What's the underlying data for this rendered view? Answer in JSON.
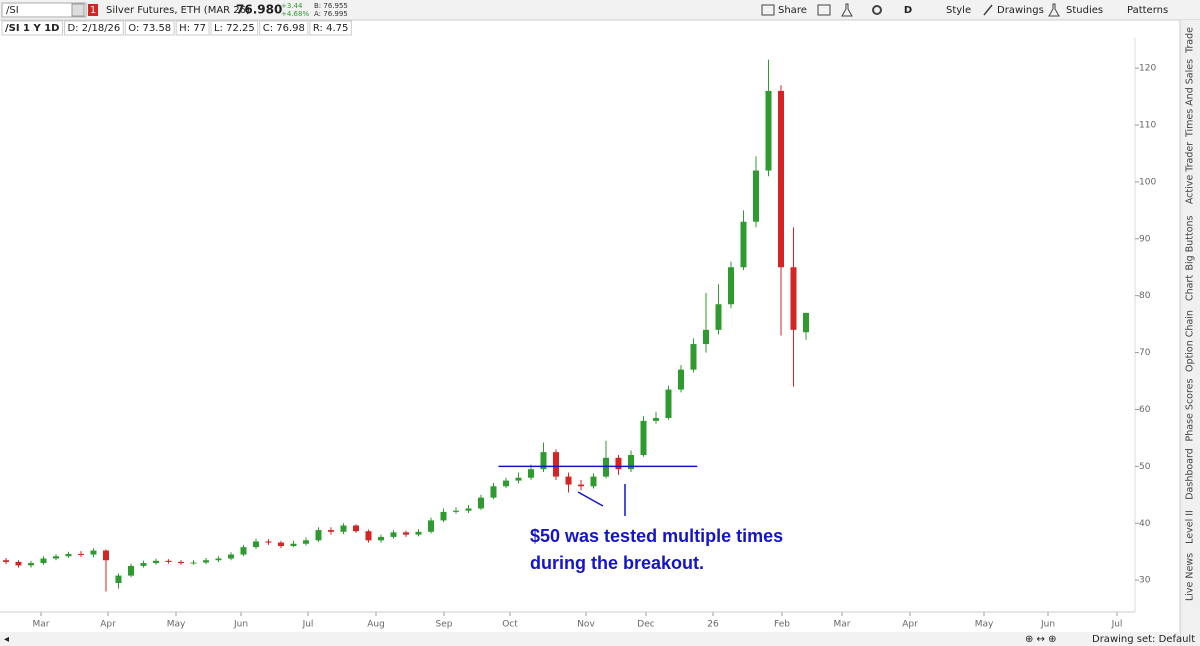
{
  "toolbar": {
    "symbol": "/SI",
    "badge": "1",
    "description": "Silver Futures, ETH (MAR 26)",
    "last": "76.980",
    "change": "+3.44",
    "change_pct": "+4.68%",
    "bid": "B: 76.955",
    "ask": "A: 76.995",
    "share": "Share",
    "aggregation": "D",
    "style": "Style",
    "drawings": "Drawings",
    "studies": "Studies",
    "patterns": "Patterns"
  },
  "info_bar": [
    "/SI 1 Y 1D",
    "D: 2/18/26",
    "O: 73.58",
    "H: 77",
    "L: 72.25",
    "C: 76.98",
    "R: 4.75"
  ],
  "side_tabs": [
    "Trade",
    "Times And Sales",
    "Active Trader",
    "Big Buttons",
    "Chart",
    "Option Chain",
    "Phase Scores",
    "Dashboard",
    "Level II",
    "Live News"
  ],
  "status": "Drawing set: Default",
  "chart_data": {
    "type": "candlestick",
    "categories": [
      null,
      null,
      null,
      null,
      null,
      null,
      null,
      null,
      null,
      null,
      null,
      null,
      null,
      null,
      null,
      null,
      null,
      null,
      null,
      null,
      null,
      null,
      null,
      null,
      null,
      null,
      null,
      null,
      null,
      null,
      null,
      null,
      null,
      null,
      null,
      null,
      null,
      null,
      null,
      null,
      null,
      null,
      null,
      null,
      null,
      null,
      null,
      null,
      null,
      null,
      null,
      null,
      null,
      null,
      null,
      null,
      null,
      null,
      null,
      null,
      null,
      null,
      null,
      null,
      null
    ],
    "open": [
      33.5,
      33.2,
      32.6,
      33.0,
      33.8,
      34.2,
      34.6,
      34.5,
      35.2,
      29.5,
      30.8,
      32.5,
      33.0,
      33.4,
      33.2,
      33.0,
      33.1,
      33.5,
      33.8,
      34.5,
      35.8,
      36.8,
      36.6,
      36.0,
      36.4,
      37.0,
      38.8,
      38.5,
      39.6,
      38.6,
      37.0,
      37.6,
      38.4,
      38.0,
      38.5,
      40.5,
      42.0,
      42.2,
      42.6,
      44.5,
      46.5,
      47.5,
      48.0,
      49.5,
      52.5,
      48.2,
      46.8,
      46.5,
      48.2,
      51.5,
      49.5,
      52.0,
      58.0,
      58.5,
      63.5,
      67.0,
      71.5,
      74.0,
      78.5,
      85.0,
      93.0,
      102.0,
      116.0,
      85.0,
      73.58
    ],
    "high": [
      33.9,
      33.5,
      33.4,
      34.2,
      34.6,
      35.0,
      35.1,
      35.6,
      35.4,
      31.2,
      32.9,
      33.4,
      33.8,
      33.7,
      33.5,
      33.5,
      33.9,
      34.2,
      34.9,
      36.2,
      37.3,
      37.2,
      36.9,
      36.9,
      37.5,
      39.3,
      39.3,
      40.0,
      39.8,
      38.9,
      38.0,
      38.8,
      38.7,
      39.0,
      41.0,
      42.6,
      42.8,
      43.2,
      45.0,
      47.1,
      48.0,
      48.9,
      50.3,
      54.2,
      53.0,
      48.9,
      47.6,
      48.8,
      54.5,
      52.0,
      52.8,
      58.8,
      59.6,
      64.2,
      67.8,
      72.5,
      80.5,
      82.0,
      86.0,
      95.0,
      104.5,
      121.5,
      117.0,
      92.0,
      77.0
    ],
    "low": [
      32.8,
      32.2,
      32.2,
      32.7,
      33.5,
      33.9,
      34.1,
      34.1,
      28.0,
      28.5,
      30.5,
      32.2,
      32.7,
      32.9,
      32.7,
      32.7,
      32.8,
      33.2,
      33.5,
      34.2,
      35.5,
      36.2,
      35.6,
      35.8,
      36.1,
      36.7,
      38.0,
      38.1,
      38.3,
      36.6,
      36.6,
      37.3,
      37.6,
      37.7,
      38.2,
      40.2,
      41.7,
      41.8,
      42.3,
      44.2,
      46.2,
      47.0,
      47.6,
      49.0,
      47.6,
      45.4,
      45.8,
      46.1,
      47.9,
      48.5,
      49.0,
      51.7,
      57.5,
      58.2,
      63.0,
      66.5,
      70.0,
      73.2,
      77.8,
      84.5,
      92.0,
      101.0,
      73.0,
      64.0,
      72.25
    ],
    "close": [
      33.2,
      32.6,
      33.0,
      33.8,
      34.2,
      34.6,
      34.5,
      35.2,
      33.5,
      30.8,
      32.5,
      33.0,
      33.4,
      33.2,
      33.0,
      33.1,
      33.5,
      33.8,
      34.5,
      35.8,
      36.8,
      36.6,
      36.0,
      36.4,
      37.0,
      38.8,
      38.5,
      39.6,
      38.6,
      37.0,
      37.6,
      38.4,
      38.0,
      38.5,
      40.5,
      42.0,
      42.2,
      42.6,
      44.5,
      46.5,
      47.5,
      48.0,
      49.5,
      52.5,
      48.2,
      46.8,
      46.5,
      48.2,
      51.5,
      49.5,
      52.0,
      58.0,
      58.5,
      63.5,
      67.0,
      71.5,
      74.0,
      78.5,
      85.0,
      93.0,
      102.0,
      116.0,
      85.0,
      74.0,
      76.98
    ],
    "up_color": "#2f9a2f",
    "down_color": "#d42424",
    "xlim": [
      -0.48,
      90.32
    ],
    "xticks": [
      {
        "value": 2.8,
        "label": "Mar"
      },
      {
        "value": 8.16,
        "label": "Apr"
      },
      {
        "value": 13.6,
        "label": "May"
      },
      {
        "value": 18.8,
        "label": "Jun"
      },
      {
        "value": 24.16,
        "label": "Jul"
      },
      {
        "value": 29.6,
        "label": "Aug"
      },
      {
        "value": 35.04,
        "label": "Sep"
      },
      {
        "value": 40.32,
        "label": "Oct"
      },
      {
        "value": 46.4,
        "label": "Nov"
      },
      {
        "value": 51.2,
        "label": "Dec"
      },
      {
        "value": 56.56,
        "label": "26"
      },
      {
        "value": 62.08,
        "label": "Feb"
      },
      {
        "value": 66.88,
        "label": "Mar"
      },
      {
        "value": 72.32,
        "label": "Apr"
      },
      {
        "value": 78.24,
        "label": "May"
      },
      {
        "value": 83.36,
        "label": "Jun"
      },
      {
        "value": 88.88,
        "label": "Jul"
      }
    ],
    "ylim": [
      24.4,
      125.3
    ],
    "yticks": [
      30,
      40,
      50,
      60,
      70,
      80,
      90,
      100,
      110,
      120
    ],
    "hline": 50,
    "hline_xrange": [
      39.4,
      55.3
    ],
    "annotation_color": "#1414c8",
    "annotation": [
      "$50 was tested multiple times",
      "during the breakout."
    ]
  }
}
